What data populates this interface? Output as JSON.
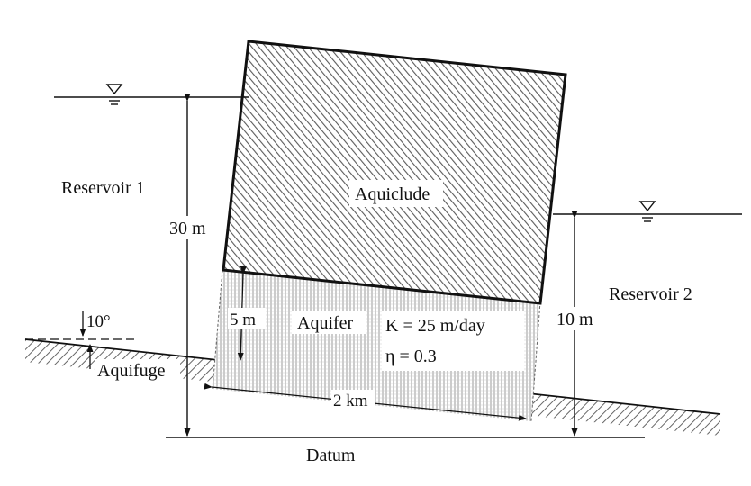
{
  "labels": {
    "reservoir1": "Reservoir 1",
    "reservoir2": "Reservoir 2",
    "aquiclude": "Aquiclude",
    "aquifer": "Aquifer",
    "aquifuge": "Aquifuge",
    "datum": "Datum",
    "head1": "30 m",
    "head2": "10 m",
    "thickness": "5 m",
    "length": "2 km",
    "angle": "10°",
    "conductivity": "K = 25 m/day",
    "porosity": "η = 0.3"
  },
  "icons": [
    "water-level-symbol"
  ],
  "colors": {
    "line": "#111111",
    "hatch": "#7a7a7a",
    "fill": "#ffffff"
  }
}
